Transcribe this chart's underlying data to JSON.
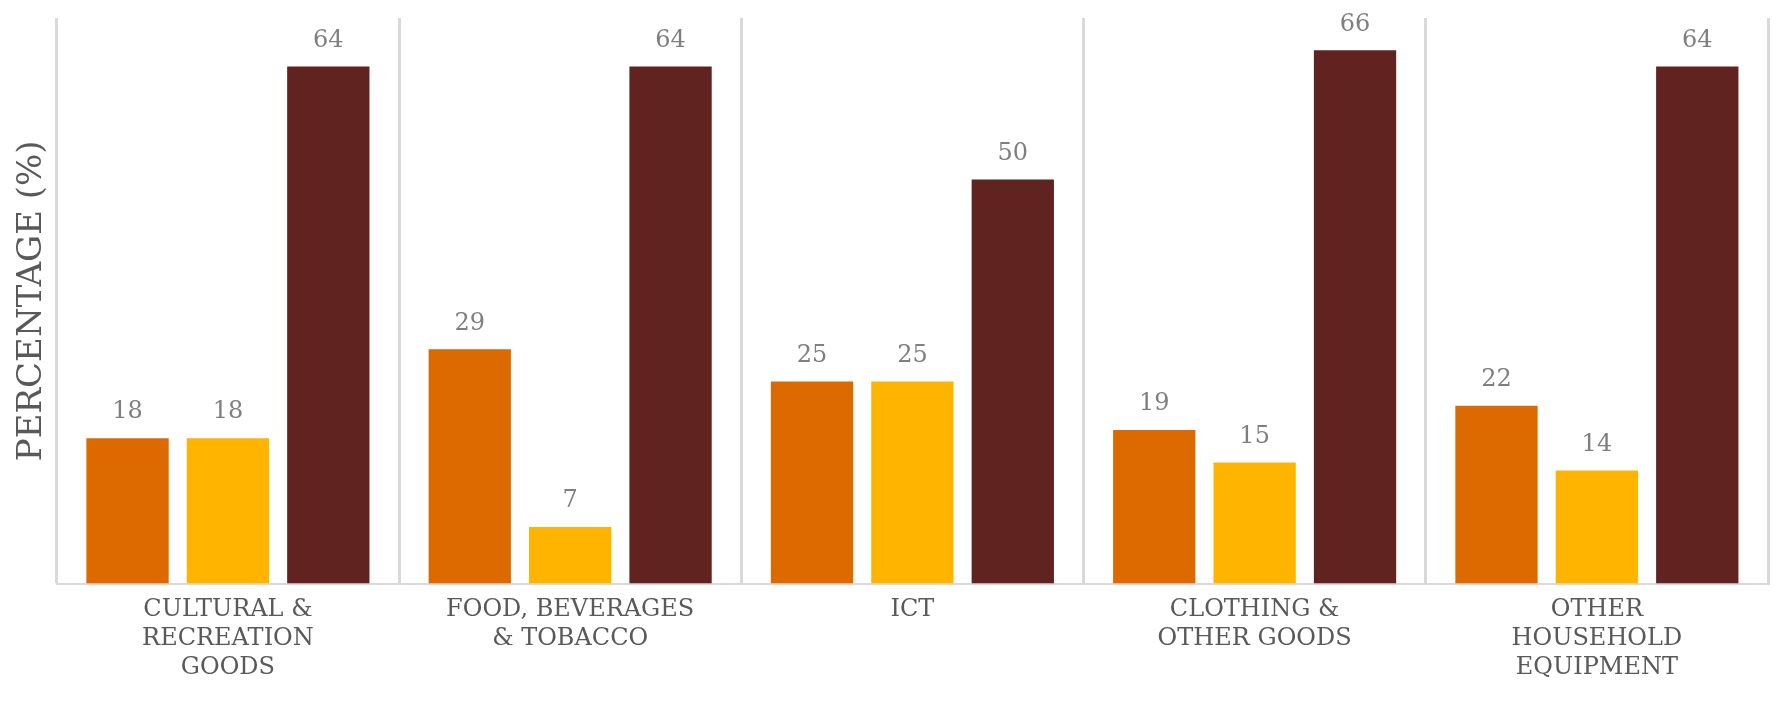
{
  "chart_data": {
    "type": "bar",
    "ylabel": "PERCENTAGE (%)",
    "categories": [
      "CULTURAL & RECREATION GOODS",
      "FOOD, BEVERAGES & TOBACCO",
      "ICT",
      "CLOTHING & OTHER GOODS",
      "OTHER HOUSEHOLD EQUIPMENT"
    ],
    "series": [
      {
        "color": "#dd6a00",
        "values": [
          18,
          29,
          25,
          19,
          22
        ]
      },
      {
        "color": "#ffb400",
        "values": [
          18,
          7,
          25,
          15,
          14
        ]
      },
      {
        "color": "#612320",
        "values": [
          64,
          64,
          50,
          66,
          64
        ]
      }
    ],
    "ylim": [
      0,
      70
    ],
    "tick_labels": "x",
    "grid": "x",
    "legend": false,
    "data_labels": true
  }
}
